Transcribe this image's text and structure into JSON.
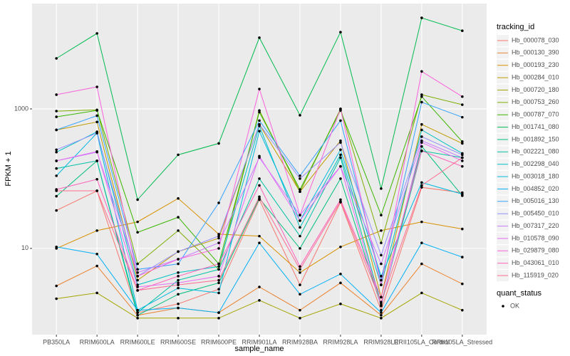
{
  "chart_data": {
    "type": "line",
    "log_scale": true,
    "grid": true,
    "x_label": "sample_name",
    "y_label": "FPKM + 1",
    "categories": [
      "PB350LA",
      "RRIM600LA",
      "RRIM600LE",
      "RRIM600SE",
      "RRIM600PE",
      "RRIM901LA",
      "RRIM928BA",
      "RRIM928LA",
      "RRIM928LE",
      "RRII105LA_Control",
      "RRII105LA_Stressed"
    ],
    "ylim": [
      0.58,
      32400
    ],
    "yticks": [
      10,
      1000
    ],
    "legend_title": "tracking_id",
    "shape_legend": {
      "title": "quant_status",
      "labels": [
        "OK"
      ]
    },
    "series": [
      {
        "name": "Hb_000078_030",
        "color": "#F8766D",
        "values": [
          35,
          67,
          1.2,
          1.6,
          2.6,
          50,
          3,
          46,
          1.3,
          75,
          63
        ]
      },
      {
        "name": "Hb_000130_390",
        "color": "#EA8331",
        "values": [
          2.9,
          5.6,
          1.1,
          1.4,
          1.2,
          2.8,
          1.3,
          3.2,
          1.1,
          6,
          3.1
        ]
      },
      {
        "name": "Hb_000193_230",
        "color": "#D89000",
        "values": [
          10,
          18,
          24,
          52,
          16,
          15,
          4.5,
          10.5,
          18,
          24,
          19
        ]
      },
      {
        "name": "Hb_000284_010",
        "color": "#C09B00",
        "values": [
          500,
          650,
          3.5,
          9,
          14,
          600,
          65,
          350,
          2,
          600,
          320
        ]
      },
      {
        "name": "Hb_000720_180",
        "color": "#A3A500",
        "values": [
          1.9,
          2.3,
          1.0,
          1.0,
          1.0,
          1.8,
          1.0,
          1.6,
          1.0,
          2.3,
          1.3
        ]
      },
      {
        "name": "Hb_000753_260",
        "color": "#7CAE00",
        "values": [
          930,
          970,
          6,
          18,
          5,
          950,
          65,
          1000,
          12,
          1600,
          1150
        ]
      },
      {
        "name": "Hb_000787_070",
        "color": "#39B600",
        "values": [
          770,
          950,
          17,
          28,
          6,
          900,
          70,
          950,
          30,
          1500,
          340
        ]
      },
      {
        "name": "Hb_001741_080",
        "color": "#00BB4E",
        "values": [
          5300,
          12100,
          50,
          220,
          320,
          10500,
          810,
          12600,
          72,
          20200,
          13200
        ]
      },
      {
        "name": "Hb_001892_150",
        "color": "#00BF7D",
        "values": [
          56,
          180,
          1.1,
          2.2,
          3.2,
          52,
          10,
          100,
          1.5,
          290,
          57
        ]
      },
      {
        "name": "Hb_002221_080",
        "color": "#00C1A3",
        "values": [
          140,
          180,
          1.2,
          3.5,
          5,
          100,
          15,
          200,
          1.6,
          250,
          200
        ]
      },
      {
        "name": "Hb_002298_040",
        "color": "#00BFC4",
        "values": [
          240,
          470,
          3,
          4.5,
          5.5,
          570,
          20,
          220,
          3,
          500,
          230
        ]
      },
      {
        "name": "Hb_003018_180",
        "color": "#00BAE0",
        "values": [
          110,
          450,
          1.3,
          2.7,
          2.3,
          480,
          25,
          260,
          4,
          88,
          60
        ]
      },
      {
        "name": "Hb_004852_020",
        "color": "#00B0F6",
        "values": [
          10.5,
          8.3,
          1.3,
          1.4,
          1.2,
          12,
          2.2,
          4.3,
          1.2,
          12,
          7.5
        ]
      },
      {
        "name": "Hb_005016_130",
        "color": "#35A2FF",
        "values": [
          500,
          800,
          5,
          6,
          45,
          680,
          110,
          680,
          3.5,
          1250,
          760
        ]
      },
      {
        "name": "Hb_005450_010",
        "color": "#9590FF",
        "values": [
          260,
          450,
          4,
          9,
          15,
          600,
          100,
          330,
          8,
          400,
          220
        ]
      },
      {
        "name": "Hb_007317_220",
        "color": "#C77CFF",
        "values": [
          180,
          240,
          4.5,
          7,
          12,
          200,
          30,
          150,
          6,
          350,
          200
        ]
      },
      {
        "name": "Hb_010578_090",
        "color": "#E76BF3",
        "values": [
          180,
          245,
          2.8,
          3.2,
          4,
          210,
          25,
          150,
          1.5,
          330,
          180
        ]
      },
      {
        "name": "Hb_029879_080",
        "color": "#FA62DB",
        "values": [
          1600,
          2070,
          4,
          7,
          10,
          1930,
          30,
          1000,
          3,
          3450,
          1500
        ]
      },
      {
        "name": "Hb_043061_010",
        "color": "#FF62BC",
        "values": [
          70,
          98,
          2.5,
          4,
          6,
          80,
          5.5,
          50,
          2,
          250,
          150
        ]
      },
      {
        "name": "Hb_115919_020",
        "color": "#FF6C91",
        "values": [
          67,
          67,
          2.5,
          3.0,
          3.5,
          55,
          5,
          47,
          1.7,
          80,
          200
        ]
      }
    ]
  }
}
